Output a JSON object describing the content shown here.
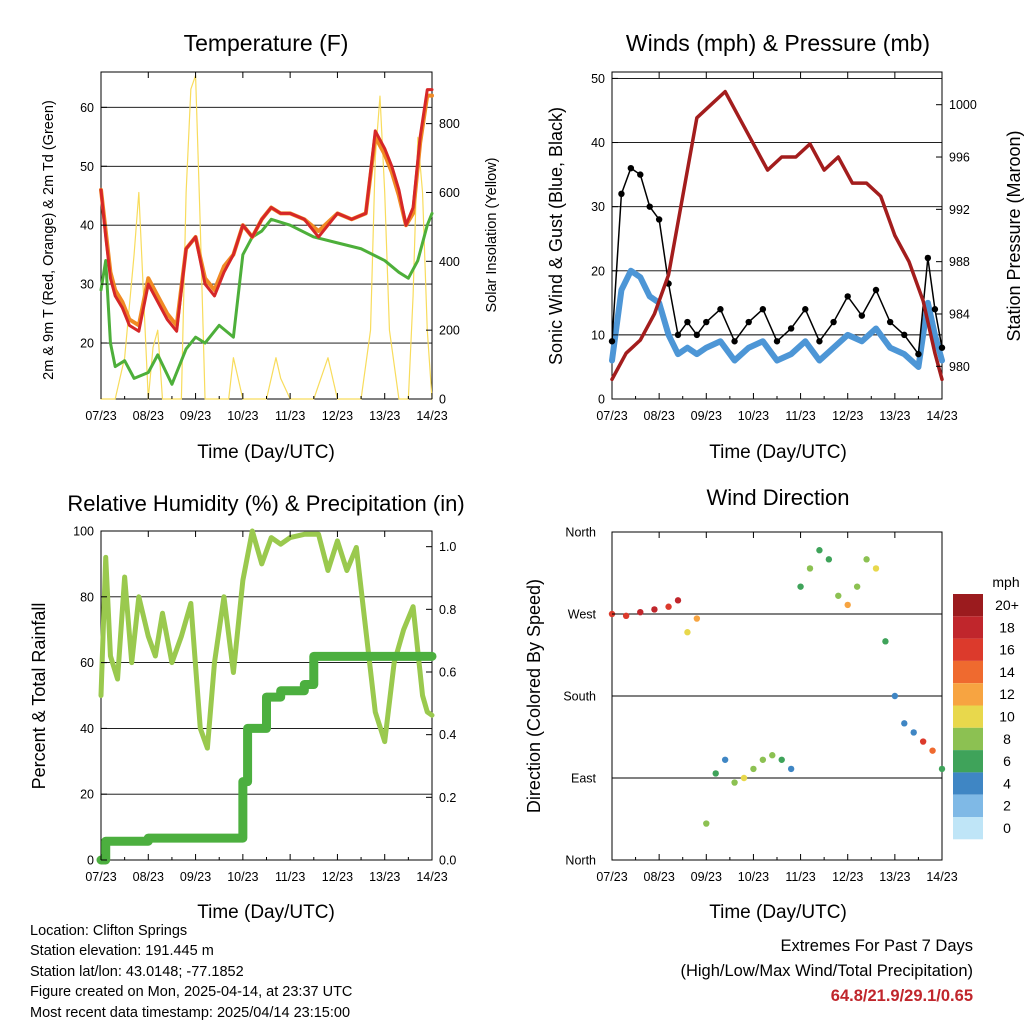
{
  "panels": {
    "temperature": {
      "title": "Temperature (F)",
      "ylabel": "2m & 9m T (Red, Orange) & 2m Td (Green)",
      "ylabel_right": "Solar Insolation (Yellow)",
      "xlabel": "Time (Day/UTC)",
      "yticks": [
        "20",
        "30",
        "40",
        "50",
        "60"
      ],
      "yticks_right": [
        "0",
        "200",
        "400",
        "600",
        "800"
      ]
    },
    "winds": {
      "title": "Winds (mph) & Pressure (mb)",
      "ylabel": "Sonic Wind & Gust (Blue, Black)",
      "ylabel_right": "Station Pressure (Maroon)",
      "xlabel": "Time (Day/UTC)",
      "yticks": [
        "0",
        "10",
        "20",
        "30",
        "40",
        "50"
      ],
      "yticks_right": [
        "980",
        "984",
        "988",
        "992",
        "996",
        "1000"
      ]
    },
    "humidity": {
      "title": "Relative Humidity (%) & Precipitation (in)",
      "ylabel": "Percent & Total Rainfall",
      "xlabel": "Time (Day/UTC)",
      "yticks": [
        "0",
        "20",
        "40",
        "60",
        "80",
        "100"
      ],
      "yticks_right": [
        "0.0",
        "0.2",
        "0.4",
        "0.6",
        "0.8",
        "1.0"
      ]
    },
    "direction": {
      "title": "Wind Direction",
      "ylabel": "Direction (Colored By Speed)",
      "xlabel": "Time (Day/UTC)",
      "yticks": [
        "North",
        "East",
        "South",
        "West",
        "North"
      ],
      "legend_title": "mph",
      "legend_labels": [
        "20+",
        "18",
        "16",
        "14",
        "12",
        "10",
        "8",
        "6",
        "4",
        "2",
        "0"
      ],
      "legend_colors": [
        "#9b1b1e",
        "#c0262c",
        "#dc3a2c",
        "#ef6a2f",
        "#f7a441",
        "#e8d84c",
        "#8cc152",
        "#3fa35a",
        "#3f86c4",
        "#7fb9e6",
        "#bfe5f7"
      ]
    }
  },
  "xticks": [
    "07/23",
    "08/23",
    "09/23",
    "10/23",
    "11/23",
    "12/23",
    "13/23",
    "14/23"
  ],
  "colors": {
    "temp2m": "#d62728",
    "temp9m": "#f08a24",
    "dewpoint": "#4daf3a",
    "solar": "#f8dc5c",
    "wind": "#4d96d6",
    "gust": "#000000",
    "pressure": "#a31d1d",
    "rh": "#9ac94e",
    "precip": "#4caf3f"
  },
  "chart_data": [
    {
      "type": "line",
      "title": "Temperature (F)",
      "xlabel": "Time (Day/UTC)",
      "ylabel": "2m & 9m T (Red, Orange) & 2m Td (Green)",
      "ylabel_right": "Solar Insolation (Yellow)",
      "ylim": [
        10.5,
        66
      ],
      "ylim_right": [
        0,
        950
      ],
      "x_categories": [
        "07/23",
        "08/23",
        "09/23",
        "10/23",
        "11/23",
        "12/23",
        "13/23",
        "14/23"
      ],
      "series": [
        {
          "role": "temp2m",
          "x": [
            0,
            0.1,
            0.2,
            0.3,
            0.45,
            0.6,
            0.8,
            1.0,
            1.2,
            1.4,
            1.6,
            1.8,
            2.0,
            2.2,
            2.4,
            2.6,
            2.8,
            3.0,
            3.2,
            3.4,
            3.6,
            3.8,
            4.0,
            4.3,
            4.6,
            5.0,
            5.3,
            5.6,
            5.8,
            6.0,
            6.15,
            6.3,
            6.45,
            6.6,
            6.75,
            6.9,
            7.0
          ],
          "y": [
            46,
            38,
            31,
            28,
            26,
            23,
            22,
            30,
            27,
            24,
            22,
            36,
            38,
            30,
            28,
            32,
            35,
            40,
            38,
            41,
            43,
            42,
            42,
            41,
            38,
            42,
            41,
            42,
            56,
            53,
            50,
            46,
            40,
            43,
            55,
            63,
            63
          ]
        },
        {
          "role": "temp9m",
          "x": [
            0,
            0.1,
            0.2,
            0.3,
            0.45,
            0.6,
            0.8,
            1.0,
            1.2,
            1.4,
            1.6,
            1.8,
            2.0,
            2.2,
            2.4,
            2.6,
            2.8,
            3.0,
            3.2,
            3.4,
            3.6,
            3.8,
            4.0,
            4.3,
            4.6,
            5.0,
            5.3,
            5.6,
            5.8,
            6.0,
            6.15,
            6.3,
            6.45,
            6.6,
            6.75,
            6.9,
            7.0
          ],
          "y": [
            46,
            39,
            32,
            29,
            27,
            24,
            23,
            31,
            28,
            25,
            23,
            36,
            38,
            31,
            29,
            33,
            35,
            40,
            38,
            41,
            43,
            42,
            42,
            41,
            39,
            42,
            41,
            42,
            55,
            52,
            49,
            45,
            40,
            42,
            54,
            62,
            62
          ]
        },
        {
          "role": "dewpoint",
          "x": [
            0,
            0.1,
            0.2,
            0.3,
            0.5,
            0.7,
            1.0,
            1.2,
            1.5,
            1.8,
            2.0,
            2.2,
            2.5,
            2.8,
            3.0,
            3.2,
            3.4,
            3.6,
            4.0,
            4.5,
            5.0,
            5.5,
            6.0,
            6.3,
            6.5,
            6.7,
            6.9,
            7.0
          ],
          "y": [
            29,
            34,
            20,
            16,
            17,
            14,
            15,
            18,
            13,
            19,
            21,
            20,
            23,
            21,
            35,
            38,
            39,
            41,
            40,
            38,
            37,
            36,
            34,
            32,
            31,
            34,
            40,
            42
          ]
        },
        {
          "role": "solar",
          "x": [
            0,
            0.3,
            0.5,
            0.7,
            0.8,
            0.9,
            1.0,
            1.1,
            1.2,
            1.3,
            1.5,
            1.7,
            1.8,
            1.9,
            2.0,
            2.1,
            2.2,
            2.4,
            2.7,
            2.8,
            3.0,
            3.2,
            3.5,
            3.7,
            3.8,
            4.0,
            4.2,
            4.5,
            4.8,
            5.0,
            5.2,
            5.5,
            5.7,
            5.8,
            5.9,
            6.0,
            6.1,
            6.3,
            6.5,
            6.6,
            6.7,
            6.8,
            6.9,
            7.0
          ],
          "y": [
            0,
            0,
            120,
            420,
            600,
            300,
            0,
            150,
            200,
            0,
            0,
            0,
            600,
            900,
            940,
            500,
            0,
            0,
            0,
            120,
            0,
            0,
            0,
            120,
            60,
            0,
            0,
            0,
            120,
            0,
            0,
            0,
            200,
            700,
            880,
            600,
            200,
            0,
            0,
            300,
            760,
            600,
            200,
            0
          ]
        }
      ]
    },
    {
      "type": "line",
      "title": "Winds (mph) & Pressure (mb)",
      "xlabel": "Time (Day/UTC)",
      "ylabel": "Sonic Wind & Gust (Blue, Black)",
      "ylabel_right": "Station Pressure (Maroon)",
      "ylim": [
        0,
        51
      ],
      "ylim_right": [
        977.5,
        1002.5
      ],
      "x_categories": [
        "07/23",
        "08/23",
        "09/23",
        "10/23",
        "11/23",
        "12/23",
        "13/23",
        "14/23"
      ],
      "series": [
        {
          "role": "wind",
          "x": [
            0,
            0.2,
            0.4,
            0.6,
            0.8,
            1.0,
            1.2,
            1.4,
            1.6,
            1.8,
            2.0,
            2.3,
            2.6,
            2.9,
            3.2,
            3.5,
            3.8,
            4.1,
            4.4,
            4.7,
            5.0,
            5.3,
            5.6,
            5.9,
            6.2,
            6.5,
            6.7,
            6.85,
            7.0
          ],
          "y": [
            6,
            17,
            20,
            19,
            16,
            15,
            10,
            7,
            8,
            7,
            8,
            9,
            6,
            8,
            9,
            6,
            7,
            9,
            6,
            8,
            10,
            9,
            11,
            8,
            7,
            5,
            15,
            10,
            6
          ]
        },
        {
          "role": "gust",
          "x": [
            0,
            0.2,
            0.4,
            0.6,
            0.8,
            1.0,
            1.2,
            1.4,
            1.6,
            1.8,
            2.0,
            2.3,
            2.6,
            2.9,
            3.2,
            3.5,
            3.8,
            4.1,
            4.4,
            4.7,
            5.0,
            5.3,
            5.6,
            5.9,
            6.2,
            6.5,
            6.7,
            6.85,
            7.0
          ],
          "y": [
            9,
            32,
            36,
            35,
            30,
            28,
            18,
            10,
            12,
            10,
            12,
            14,
            9,
            12,
            14,
            9,
            11,
            14,
            9,
            12,
            16,
            13,
            17,
            12,
            10,
            7,
            22,
            14,
            8
          ]
        },
        {
          "role": "pressure",
          "x": [
            0,
            0.3,
            0.6,
            0.9,
            1.2,
            1.5,
            1.8,
            2.1,
            2.4,
            2.7,
            3.0,
            3.3,
            3.6,
            3.9,
            4.2,
            4.5,
            4.8,
            5.1,
            5.4,
            5.7,
            6.0,
            6.3,
            6.6,
            6.85,
            7.0
          ],
          "y": [
            979,
            981,
            982,
            984,
            987,
            993,
            999,
            1000,
            1001,
            999,
            997,
            995,
            996,
            996,
            997,
            995,
            996,
            994,
            994,
            993,
            990,
            988,
            985,
            981,
            979
          ]
        }
      ]
    },
    {
      "type": "line",
      "title": "Relative Humidity (%) & Precipitation (in)",
      "xlabel": "Time (Day/UTC)",
      "ylabel": "Percent & Total Rainfall",
      "ylim": [
        0,
        100
      ],
      "ylim_right": [
        0,
        1.05
      ],
      "x_categories": [
        "07/23",
        "08/23",
        "09/23",
        "10/23",
        "11/23",
        "12/23",
        "13/23",
        "14/23"
      ],
      "series": [
        {
          "role": "rh",
          "x": [
            0,
            0.1,
            0.2,
            0.35,
            0.5,
            0.65,
            0.8,
            1.0,
            1.15,
            1.3,
            1.5,
            1.7,
            1.9,
            2.1,
            2.25,
            2.4,
            2.6,
            2.8,
            3.0,
            3.2,
            3.4,
            3.6,
            3.8,
            4.0,
            4.3,
            4.6,
            4.8,
            5.0,
            5.2,
            5.4,
            5.6,
            5.8,
            6.0,
            6.2,
            6.4,
            6.6,
            6.8,
            6.9,
            7.0
          ],
          "y": [
            50,
            92,
            62,
            55,
            86,
            60,
            80,
            68,
            62,
            75,
            60,
            68,
            78,
            40,
            34,
            60,
            80,
            57,
            85,
            100,
            90,
            98,
            96,
            98,
            99,
            99,
            88,
            97,
            88,
            95,
            70,
            45,
            36,
            60,
            70,
            77,
            50,
            45,
            44
          ]
        },
        {
          "role": "precip",
          "x": [
            0,
            0.1,
            1.0,
            2.0,
            2.9,
            3.0,
            3.1,
            3.2,
            3.5,
            3.8,
            4.3,
            4.5,
            5.0,
            6.0,
            7.0
          ],
          "y": [
            0,
            0.06,
            0.07,
            0.07,
            0.07,
            0.25,
            0.42,
            0.42,
            0.52,
            0.54,
            0.56,
            0.65,
            0.65,
            0.65,
            0.65
          ]
        }
      ]
    },
    {
      "type": "scatter",
      "title": "Wind Direction",
      "xlabel": "Time (Day/UTC)",
      "ylabel": "Direction (Colored By Speed)",
      "ylim": [
        0,
        360
      ],
      "y_categories": [
        "North",
        "East",
        "South",
        "West",
        "North"
      ],
      "legend_title": "mph",
      "x_categories": [
        "07/23",
        "08/23",
        "09/23",
        "10/23",
        "11/23",
        "12/23",
        "13/23",
        "14/23"
      ],
      "series": [
        {
          "x": [
            0,
            0.3,
            0.6,
            0.9,
            1.2,
            1.4,
            1.6,
            1.8,
            2.0,
            2.2,
            2.4,
            2.6,
            2.8,
            3.0,
            3.2,
            3.4,
            3.6,
            3.8,
            4.0,
            4.2,
            4.4,
            4.6,
            4.8,
            5.0,
            5.2,
            5.4,
            5.6,
            5.8,
            6.0,
            6.2,
            6.4,
            6.6,
            6.8,
            7.0
          ],
          "y": [
            270,
            268,
            272,
            275,
            278,
            285,
            250,
            265,
            40,
            95,
            110,
            85,
            90,
            100,
            110,
            115,
            110,
            100,
            300,
            320,
            340,
            330,
            290,
            280,
            300,
            330,
            320,
            240,
            180,
            150,
            140,
            130,
            120,
            100
          ],
          "speed": [
            16,
            17,
            18,
            18,
            16,
            18,
            10,
            12,
            8,
            6,
            4,
            8,
            10,
            8,
            9,
            9,
            7,
            5,
            6,
            8,
            6,
            7,
            8,
            12,
            9,
            8,
            10,
            6,
            5,
            4,
            4,
            16,
            14,
            6
          ]
        }
      ]
    }
  ],
  "station_info": {
    "location": "Location: Clifton Springs",
    "elevation": "Station elevation: 191.445 m",
    "latlon": "Station lat/lon: 43.0148; -77.1852",
    "created": "Figure created on Mon, 2025-04-14, at 23:37 UTC",
    "latest": "Most recent data timestamp: 2025/04/14 23:15:00"
  },
  "extremes": {
    "line1": "Extremes For Past 7 Days",
    "line2": "(High/Low/Max Wind/Total Precipitation)",
    "values": "64.8/21.9/29.1/0.65"
  }
}
